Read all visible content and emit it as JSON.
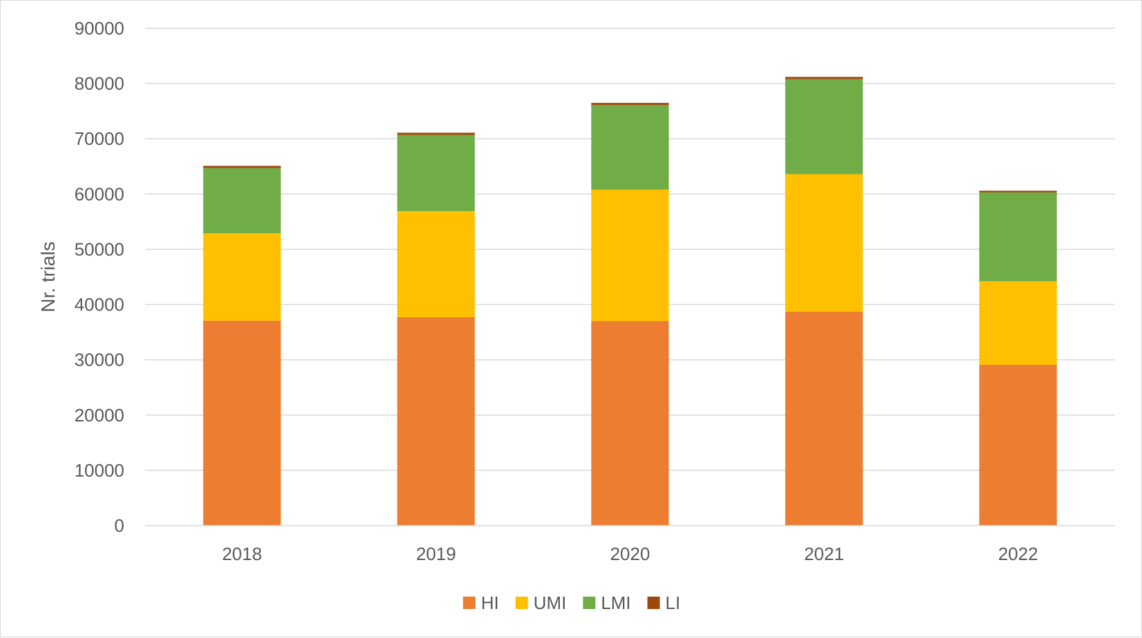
{
  "chart_data": {
    "type": "bar",
    "stacked": true,
    "title": "",
    "xlabel": "",
    "ylabel": "Nr. trials",
    "ylim": [
      0,
      90000
    ],
    "yticks": [
      "0",
      "10000",
      "20000",
      "30000",
      "40000",
      "50000",
      "60000",
      "70000",
      "80000",
      "90000"
    ],
    "grid": true,
    "legend_position": "bottom",
    "categories": [
      "2018",
      "2019",
      "2020",
      "2021",
      "2022"
    ],
    "series": [
      {
        "name": "HI",
        "color": "#ED7D31",
        "values": [
          37100,
          37700,
          37000,
          38700,
          29100
        ]
      },
      {
        "name": "UMI",
        "color": "#FFC000",
        "values": [
          15800,
          19200,
          23800,
          24900,
          15100
        ]
      },
      {
        "name": "LMI",
        "color": "#70AD47",
        "values": [
          11800,
          13800,
          15300,
          17200,
          16100
        ]
      },
      {
        "name": "LI",
        "color": "#9E480E",
        "values": [
          400,
          400,
          400,
          400,
          300
        ]
      }
    ]
  }
}
